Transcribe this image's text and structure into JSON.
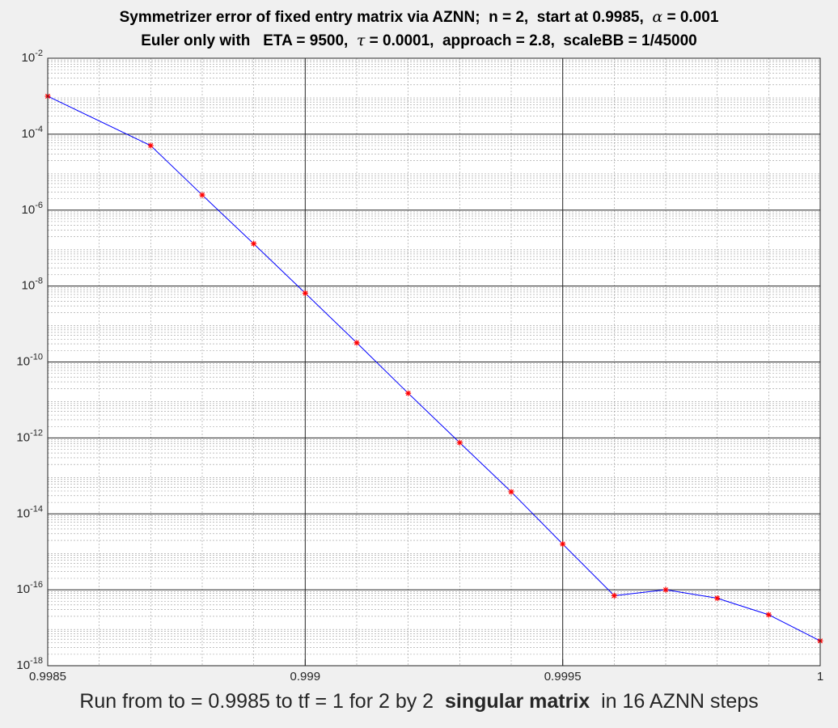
{
  "title_line1": {
    "before_alpha": "Symmetrizer error of fixed entry matrix via AZNN;  n = 2,  start at 0.9985,  ",
    "alpha_symbol": "α",
    "after_alpha": " = 0.001"
  },
  "title_line2": {
    "before_tau": "Euler only with   ETA = 9500,  ",
    "tau_symbol": "τ",
    "after_tau": " = 0.0001,  approach = 2.8,  scaleBB = 1/45000"
  },
  "caption": {
    "part1": "Run from to = 0.9985 to tf = 1 for 2 by 2  ",
    "bold": "singular matrix",
    "part2": "  in 16 AZNN steps"
  },
  "colors": {
    "line": "#0000ff",
    "markers": "#ff0000",
    "grid": "#9a9a9a",
    "axes_background": "#ffffff",
    "figure_background": "#f0f0f0"
  },
  "chart_data": {
    "type": "line",
    "xscale": "linear",
    "yscale": "log",
    "xlim": [
      0.9985,
      1
    ],
    "ylim": [
      1e-18,
      0.01
    ],
    "grid": true,
    "minor_grid": true,
    "x_ticks": [
      {
        "value": 0.9985,
        "label": "0.9985"
      },
      {
        "value": 0.999,
        "label": "0.999"
      },
      {
        "value": 0.9995,
        "label": "0.9995"
      },
      {
        "value": 1,
        "label": "1"
      }
    ],
    "y_ticks": [
      {
        "exp": -2,
        "base": "10",
        "sup": "-2"
      },
      {
        "exp": -4,
        "base": "10",
        "sup": "-4"
      },
      {
        "exp": -6,
        "base": "10",
        "sup": "-6"
      },
      {
        "exp": -8,
        "base": "10",
        "sup": "-8"
      },
      {
        "exp": -10,
        "base": "10",
        "sup": "-10"
      },
      {
        "exp": -12,
        "base": "10",
        "sup": "-12"
      },
      {
        "exp": -14,
        "base": "10",
        "sup": "-14"
      },
      {
        "exp": -16,
        "base": "10",
        "sup": "-16"
      },
      {
        "exp": -18,
        "base": "10",
        "sup": "-18"
      }
    ],
    "series": [
      {
        "x": [
          0.9985,
          0.9987,
          0.9988,
          0.9989,
          0.999,
          0.9991,
          0.9992,
          0.9993,
          0.9994,
          0.9995,
          0.9996,
          0.9997,
          0.9998,
          0.9999,
          1.0
        ],
        "y": [
          0.001,
          5e-05,
          2.5e-06,
          1.3e-07,
          6.5e-09,
          3.2e-10,
          1.5e-11,
          7.5e-13,
          3.8e-14,
          1.6e-15,
          7e-17,
          1e-16,
          6e-17,
          2.2e-17,
          4.5e-18
        ],
        "line_style": "solid",
        "marker": "*"
      }
    ]
  }
}
